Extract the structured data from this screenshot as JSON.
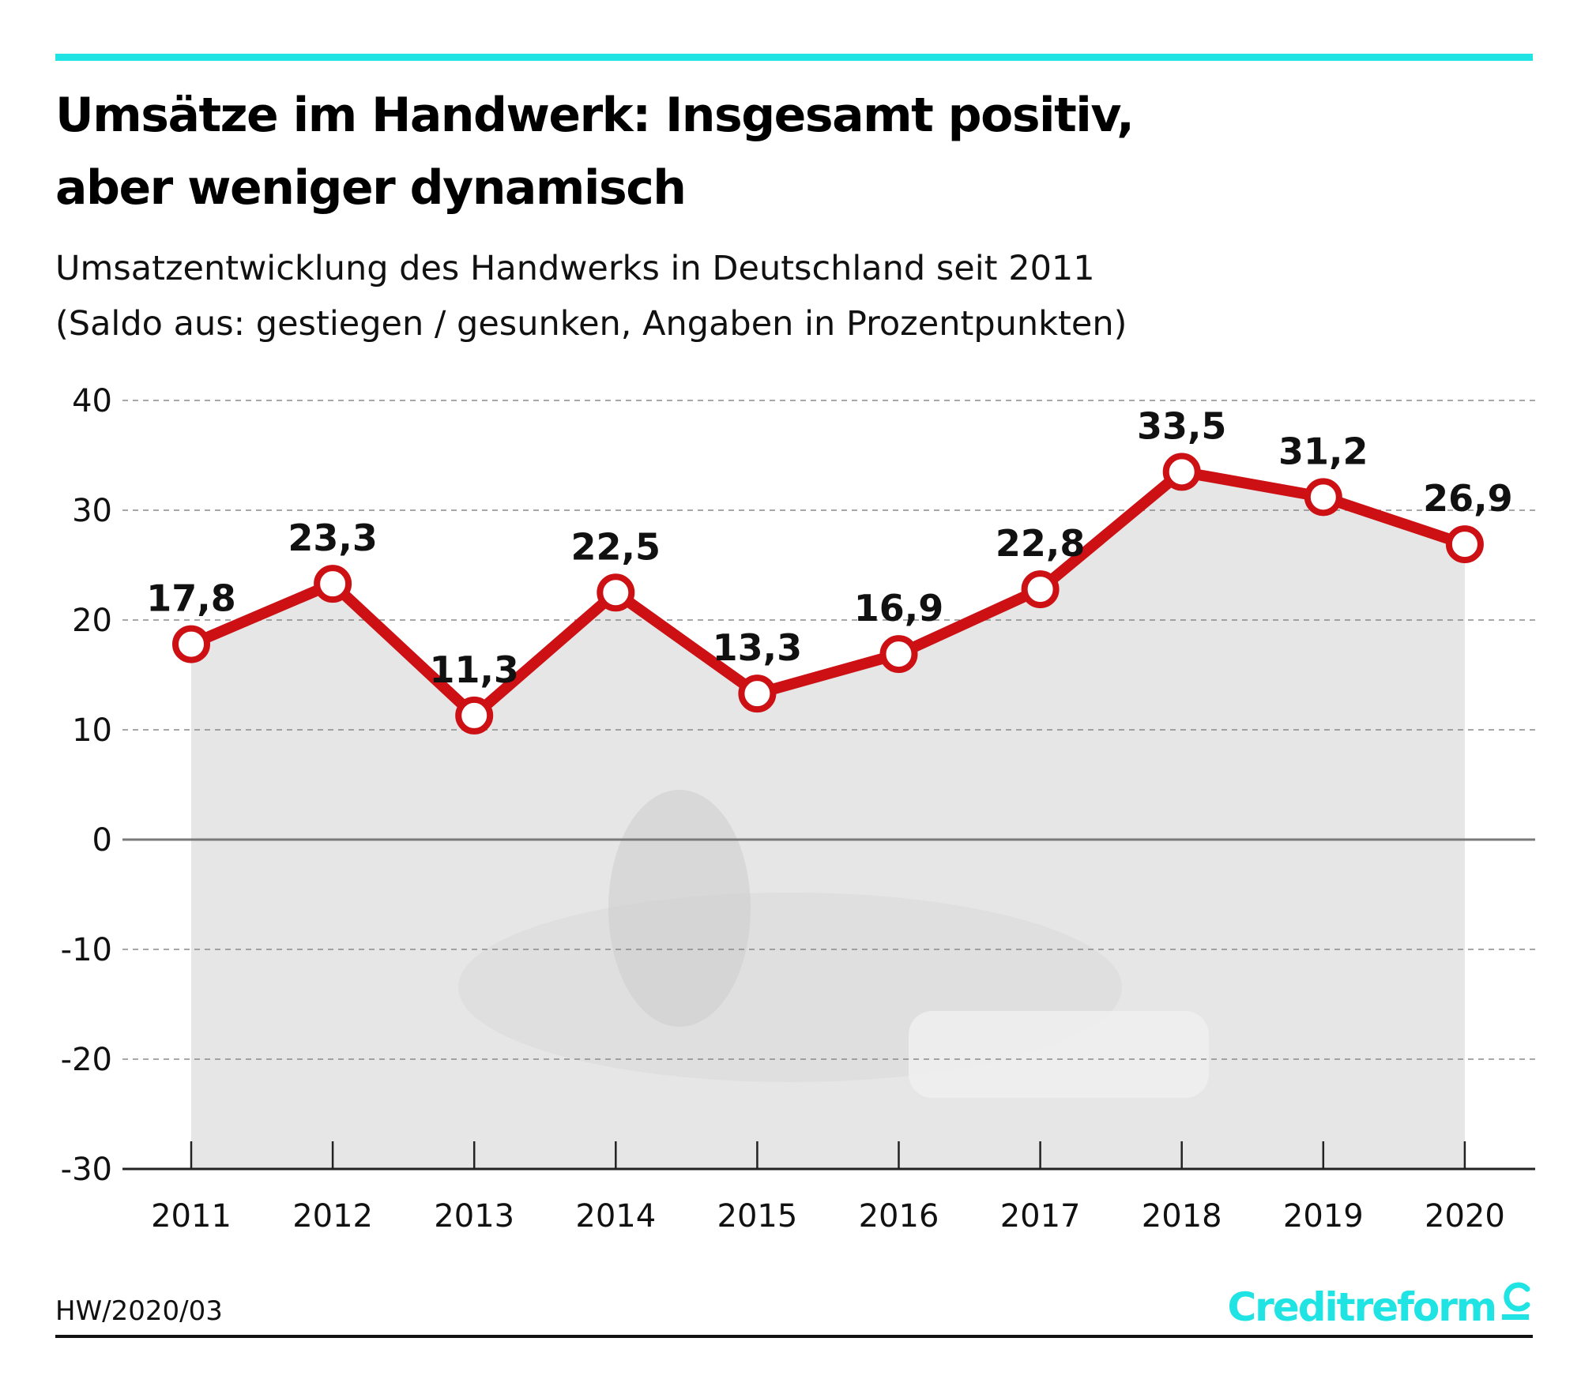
{
  "header": {
    "title_line1": "Umsätze im Handwerk: Insgesamt positiv,",
    "title_line2": "aber weniger dynamisch",
    "subtitle_line1": "Umsatzentwicklung des Handwerks in Deutschland seit 2011",
    "subtitle_line2": "(Saldo aus: gestiegen / gesunken, Angaben in Prozentpunkten)"
  },
  "footer": {
    "code": "HW/2020/03",
    "brand": "Creditreform"
  },
  "colors": {
    "accent": "#20e3e3",
    "line": "#cc1014",
    "area": "#e6e6e6",
    "grid": "#8a8a8a",
    "zero_line": "#7a7a7a"
  },
  "chart_data": {
    "type": "line",
    "title": "Umsätze im Handwerk: Insgesamt positiv, aber weniger dynamisch",
    "xlabel": "",
    "ylabel": "",
    "categories": [
      "2011",
      "2012",
      "2013",
      "2014",
      "2015",
      "2016",
      "2017",
      "2018",
      "2019",
      "2020"
    ],
    "series": [
      {
        "name": "Saldo",
        "values": [
          17.8,
          23.3,
          11.3,
          22.5,
          13.3,
          16.9,
          22.8,
          33.5,
          31.2,
          26.9
        ],
        "labels": [
          "17,8",
          "23,3",
          "11,3",
          "22,5",
          "13,3",
          "16,9",
          "22,8",
          "33,5",
          "31,2",
          "26,9"
        ]
      }
    ],
    "ylim": [
      -30,
      40
    ],
    "yticks": [
      40,
      30,
      20,
      10,
      0,
      -10,
      -20,
      -30
    ],
    "ytick_labels": [
      "40",
      "30",
      "20",
      "10",
      "0",
      "-10",
      "-20",
      "-30"
    ],
    "grid": "horizontal dashed",
    "legend": "none"
  }
}
